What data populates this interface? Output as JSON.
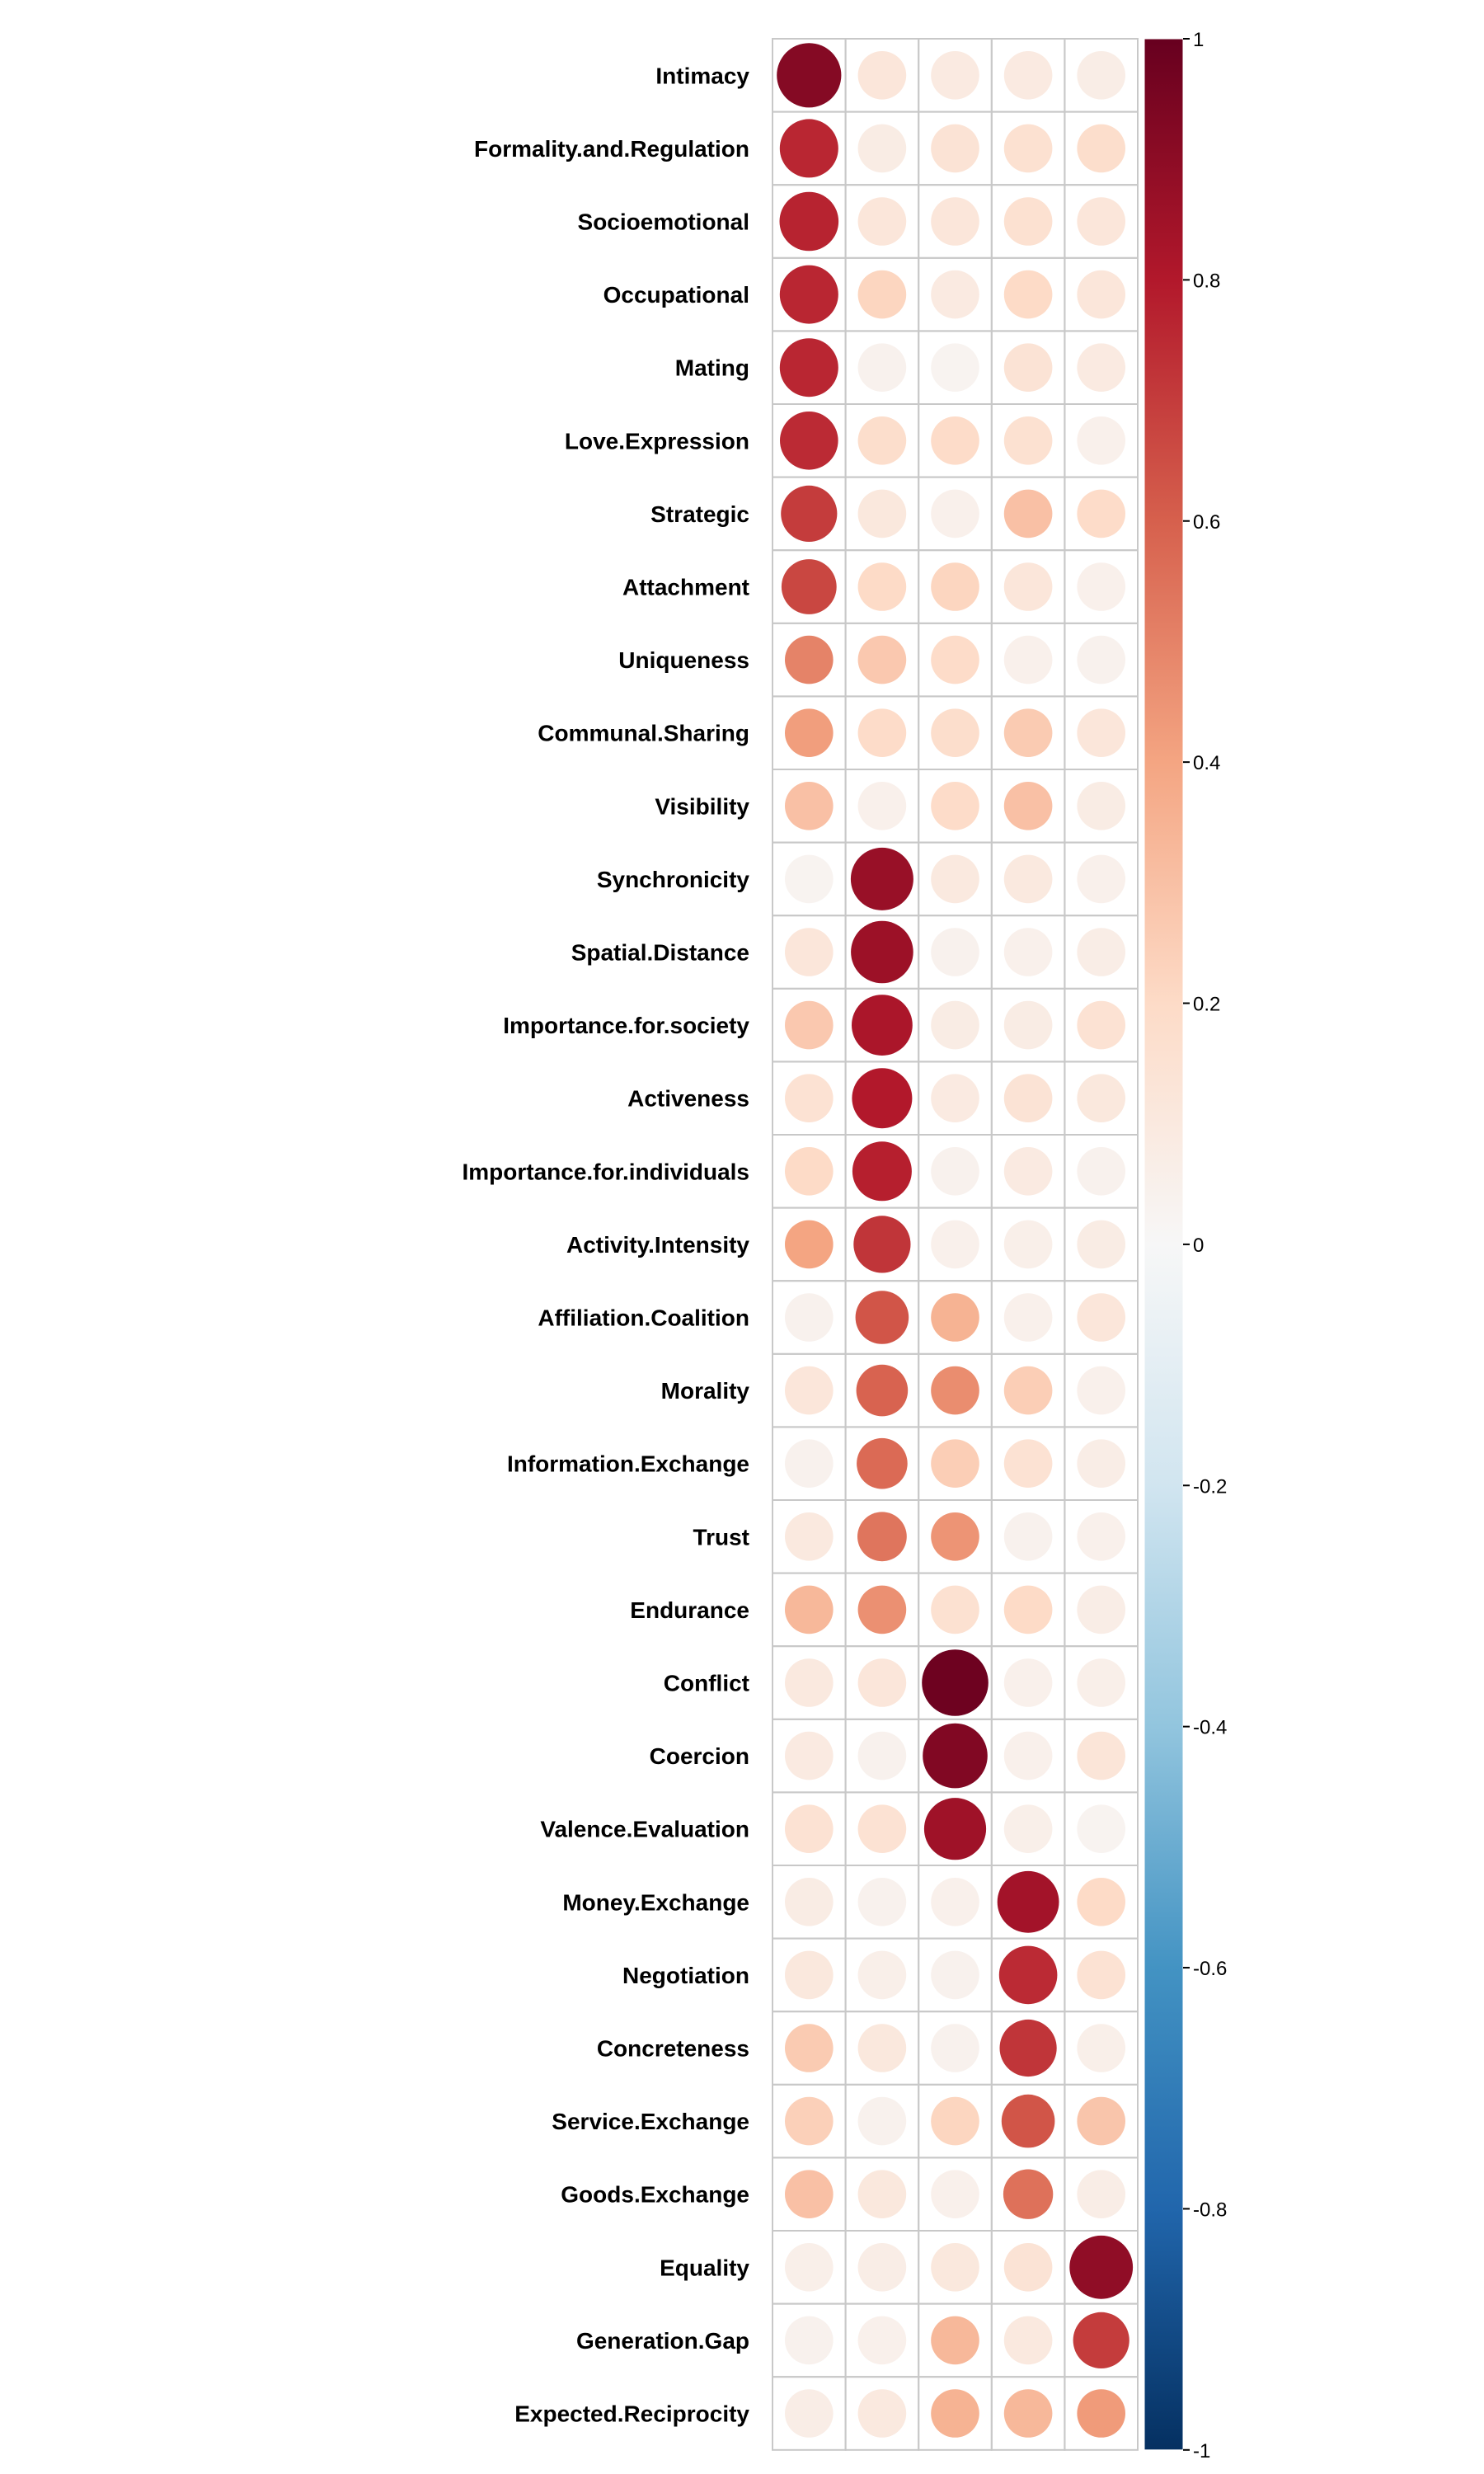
{
  "chart_data": {
    "type": "heatmap",
    "title": "",
    "xlabel": "",
    "ylabel": "",
    "columns": [
      "",
      "",
      "",
      "",
      ""
    ],
    "rows": [
      "Intimacy",
      "Formality.and.Regulation",
      "Socioemotional",
      "Occupational",
      "Mating",
      "Love.Expression",
      "Strategic",
      "Attachment",
      "Uniqueness",
      "Communal.Sharing",
      "Visibility",
      "Synchronicity",
      "Spatial.Distance",
      "Importance.for.society",
      "Activeness",
      "Importance.for.individuals",
      "Activity.Intensity",
      "Affiliation.Coalition",
      "Morality",
      "Information.Exchange",
      "Trust",
      "Endurance",
      "Conflict",
      "Coercion",
      "Valence.Evaluation",
      "Money.Exchange",
      "Negotiation",
      "Concreteness",
      "Service.Exchange",
      "Goods.Exchange",
      "Equality",
      "Generation.Gap",
      "Expected.Reciprocity"
    ],
    "values": [
      [
        0.92,
        0.12,
        0.09,
        0.09,
        0.07
      ],
      [
        0.76,
        0.08,
        0.14,
        0.16,
        0.18
      ],
      [
        0.77,
        0.12,
        0.12,
        0.16,
        0.12
      ],
      [
        0.76,
        0.22,
        0.09,
        0.2,
        0.12
      ],
      [
        0.76,
        0.04,
        0.03,
        0.14,
        0.09
      ],
      [
        0.75,
        0.18,
        0.19,
        0.16,
        0.05
      ],
      [
        0.7,
        0.11,
        0.05,
        0.3,
        0.19
      ],
      [
        0.67,
        0.2,
        0.22,
        0.12,
        0.05
      ],
      [
        0.5,
        0.27,
        0.19,
        0.05,
        0.04
      ],
      [
        0.42,
        0.19,
        0.18,
        0.26,
        0.12
      ],
      [
        0.3,
        0.05,
        0.19,
        0.3,
        0.08
      ],
      [
        0.03,
        0.87,
        0.1,
        0.1,
        0.05
      ],
      [
        0.12,
        0.86,
        0.04,
        0.05,
        0.07
      ],
      [
        0.27,
        0.82,
        0.08,
        0.08,
        0.15
      ],
      [
        0.15,
        0.8,
        0.09,
        0.14,
        0.11
      ],
      [
        0.2,
        0.78,
        0.04,
        0.09,
        0.04
      ],
      [
        0.4,
        0.72,
        0.05,
        0.06,
        0.08
      ],
      [
        0.04,
        0.63,
        0.35,
        0.05,
        0.12
      ],
      [
        0.12,
        0.59,
        0.47,
        0.25,
        0.05
      ],
      [
        0.04,
        0.57,
        0.25,
        0.15,
        0.07
      ],
      [
        0.1,
        0.54,
        0.45,
        0.04,
        0.05
      ],
      [
        0.33,
        0.46,
        0.16,
        0.2,
        0.07
      ],
      [
        0.1,
        0.12,
        0.98,
        0.05,
        0.06
      ],
      [
        0.09,
        0.04,
        0.93,
        0.05,
        0.13
      ],
      [
        0.15,
        0.15,
        0.85,
        0.06,
        0.03
      ],
      [
        0.08,
        0.04,
        0.05,
        0.84,
        0.2
      ],
      [
        0.11,
        0.06,
        0.04,
        0.75,
        0.15
      ],
      [
        0.26,
        0.11,
        0.04,
        0.72,
        0.06
      ],
      [
        0.24,
        0.04,
        0.22,
        0.63,
        0.28
      ],
      [
        0.3,
        0.11,
        0.05,
        0.55,
        0.07
      ],
      [
        0.06,
        0.07,
        0.11,
        0.14,
        0.89
      ],
      [
        0.04,
        0.05,
        0.33,
        0.1,
        0.7
      ],
      [
        0.07,
        0.1,
        0.35,
        0.33,
        0.43
      ]
    ],
    "colorbar": {
      "min": -1,
      "max": 1,
      "ticks": [
        "1",
        "0.8",
        "0.6",
        "0.4",
        "0.2",
        "0",
        "-0.2",
        "-0.4",
        "-0.6",
        "-0.8",
        "-1"
      ],
      "tick_values": [
        1,
        0.8,
        0.6,
        0.4,
        0.2,
        0,
        -0.2,
        -0.4,
        -0.6,
        -0.8,
        -1
      ],
      "colors": [
        "#053061",
        "#2166ac",
        "#4393c3",
        "#92c5de",
        "#d1e5f0",
        "#f7f7f7",
        "#fddbc7",
        "#f4a582",
        "#d6604d",
        "#b2182b",
        "#67001f"
      ]
    },
    "grid": true,
    "legend_position": "right"
  }
}
